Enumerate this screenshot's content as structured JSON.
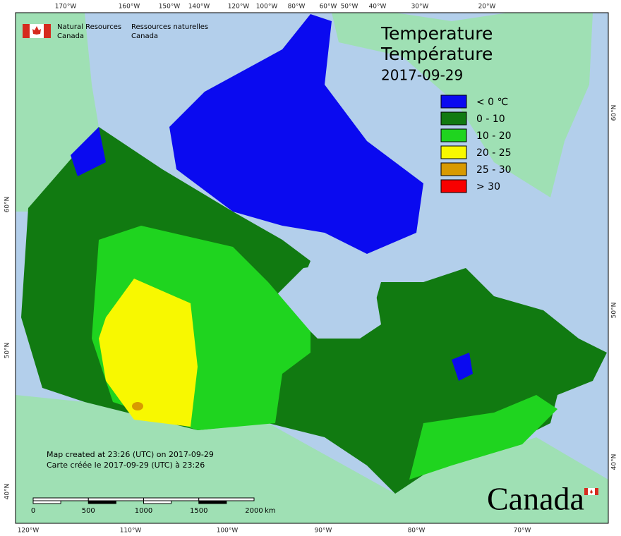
{
  "header": {
    "org_en": [
      "Natural Resources",
      "Canada"
    ],
    "org_fr": [
      "Ressources naturelles",
      "Canada"
    ]
  },
  "title": {
    "lines": [
      "Temperature",
      "Température"
    ],
    "date": "2017-09-29"
  },
  "legend": [
    {
      "label": "< 0 ℃",
      "color": "#0a0af0"
    },
    {
      "label": "0 - 10",
      "color": "#117a11"
    },
    {
      "label": "10 - 20",
      "color": "#1fd41f"
    },
    {
      "label": "20 - 25",
      "color": "#f8f800"
    },
    {
      "label": "25 - 30",
      "color": "#d89a00"
    },
    {
      "label": "> 30",
      "color": "#f80000"
    }
  ],
  "graticule": {
    "top": [
      "170°W",
      "160°W",
      "150°W",
      "140°W",
      "120°W",
      "100°W",
      "80°W",
      "60°W",
      "50°W",
      "40°W",
      "30°W",
      "20°W"
    ],
    "bottom": [
      "120°W",
      "110°W",
      "100°W",
      "90°W",
      "80°W",
      "70°W"
    ],
    "left": [
      "60°N",
      "50°N",
      "40°N"
    ],
    "right": [
      "60°N",
      "50°N",
      "40°N"
    ]
  },
  "notes": [
    "Map created at 23:26 (UTC) on 2017-09-29",
    "Carte créée le 2017-09-29 (UTC) à 23:26"
  ],
  "scale_bar": {
    "ticks": [
      0,
      500,
      1000,
      1500,
      2000
    ],
    "unit": "km"
  },
  "wordmark": "Canada"
}
